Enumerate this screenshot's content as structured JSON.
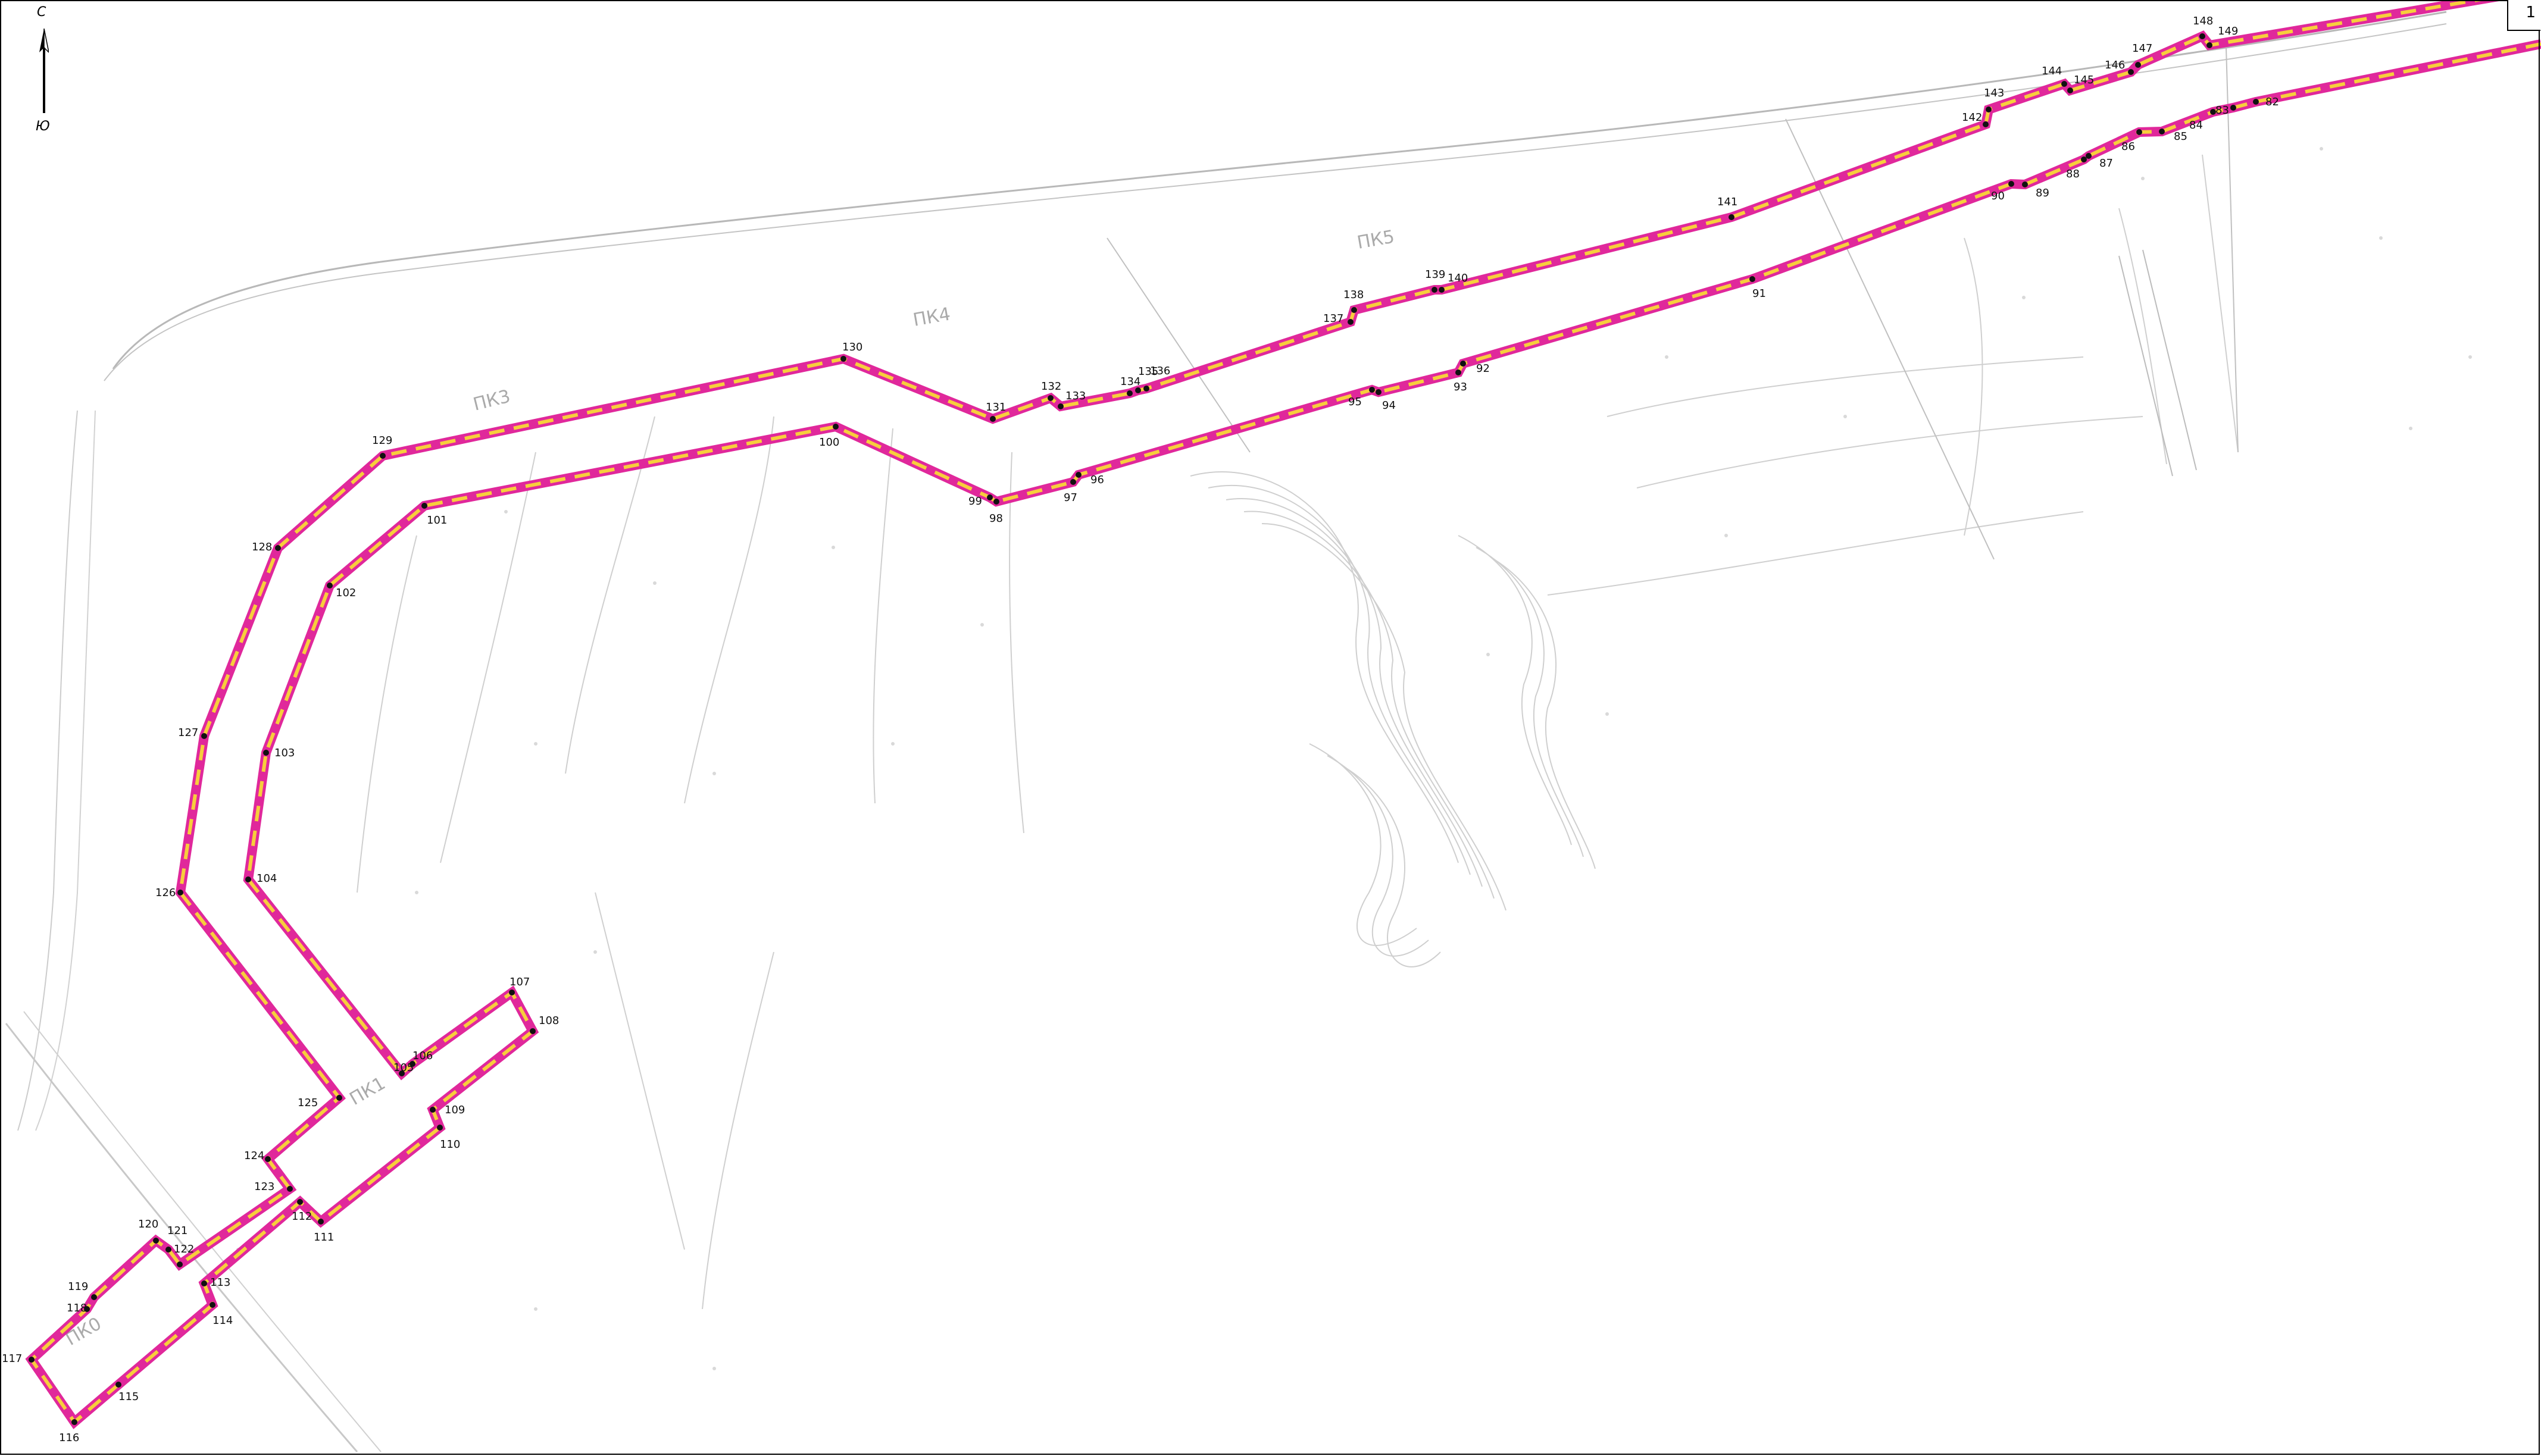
{
  "compass": {
    "north": "С",
    "south": "Ю"
  },
  "sheet": {
    "number": "1"
  },
  "pickets": [
    "ПК0",
    "ПК1",
    "ПК3",
    "ПК4",
    "ПК5"
  ],
  "colors": {
    "route_outline": "#e0289b",
    "route_fill": "#f7ce3c",
    "point": "#111111"
  },
  "route": {
    "point_ids": [
      "82",
      "83",
      "84",
      "85",
      "86",
      "87",
      "88",
      "89",
      "90",
      "91",
      "92",
      "93",
      "94",
      "95",
      "96",
      "97",
      "98",
      "99",
      "100",
      "101",
      "102",
      "103",
      "104",
      "105",
      "106",
      "107",
      "108",
      "109",
      "110",
      "111",
      "112",
      "113",
      "114",
      "115",
      "116",
      "117",
      "118",
      "119",
      "120",
      "121",
      "122",
      "123",
      "124",
      "125",
      "126",
      "127",
      "128",
      "129",
      "130",
      "131",
      "132",
      "133",
      "134",
      "135",
      "136",
      "137",
      "138",
      "139",
      "140",
      "141",
      "142",
      "143",
      "144",
      "145",
      "146",
      "147",
      "148",
      "149"
    ]
  }
}
